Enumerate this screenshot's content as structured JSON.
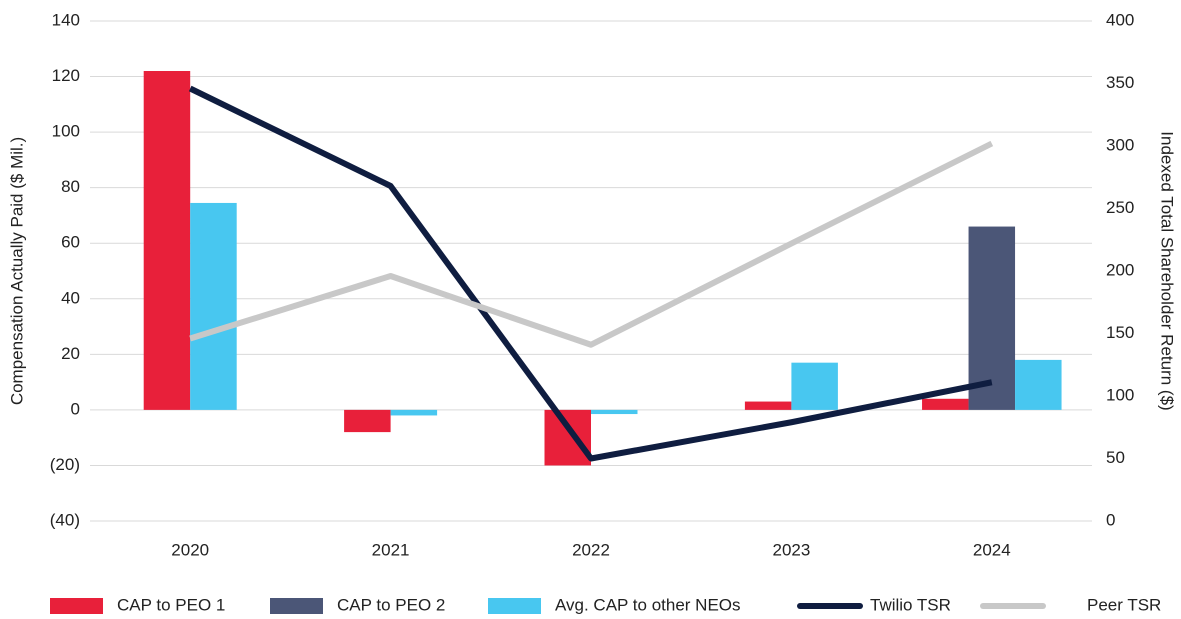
{
  "chart_data": {
    "type": "bar",
    "categories": [
      "2020",
      "2021",
      "2022",
      "2023",
      "2024"
    ],
    "series": [
      {
        "name": "CAP to PEO 1",
        "color": "#e8203a",
        "values": [
          122,
          -8,
          -20,
          3,
          4
        ]
      },
      {
        "name": "CAP to PEO 2",
        "color": "#4b5677",
        "values": [
          null,
          null,
          null,
          null,
          66
        ]
      },
      {
        "name": "Avg. CAP to other NEOs",
        "color": "#48c7f0",
        "values": [
          74.5,
          -2,
          -1.5,
          17,
          18
        ]
      },
      {
        "name": "Twilio TSR",
        "color": "#0f1d40",
        "type": "line",
        "axis": "y2",
        "values": [
          346,
          268,
          50,
          79,
          111
        ]
      },
      {
        "name": "Peer TSR",
        "color": "#c8c8c8",
        "type": "line",
        "axis": "y2",
        "values": [
          146,
          196,
          141,
          222,
          302
        ]
      }
    ],
    "ylabel": "Compensation Actually Paid ($ Mil.)",
    "y2label": "Indexed Total Shareholder Return ($)",
    "ylim": [
      -40,
      140
    ],
    "yticks": [
      {
        "value": -40,
        "label": "(40)"
      },
      {
        "value": -20,
        "label": "(20)"
      },
      0,
      20,
      40,
      60,
      80,
      100,
      120,
      140
    ],
    "y2lim": [
      0,
      400
    ],
    "y2ticks": [
      0,
      50,
      100,
      150,
      200,
      250,
      300,
      350,
      400
    ],
    "grid": true,
    "legend": "bottom"
  }
}
